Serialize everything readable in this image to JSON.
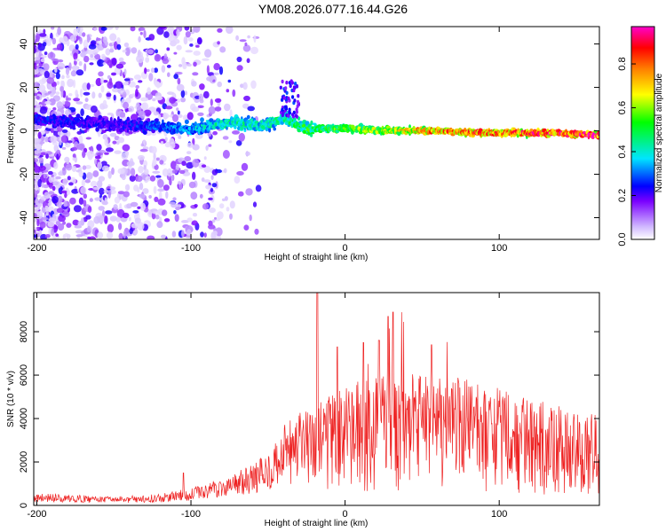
{
  "title": "YM08.2026.077.16.44.G26",
  "colors": {
    "snr_line": "#ee2222",
    "frame": "#000000",
    "background": "#ffffff"
  },
  "chart_data": [
    {
      "type": "heatmap",
      "title": "YM08.2026.077.16.44.G26",
      "xlabel": "Height of straight line (km)",
      "ylabel": "Frequency (Hz)",
      "xlim": [
        -202,
        165
      ],
      "ylim": [
        -50,
        48
      ],
      "xticks": [
        -200,
        -100,
        0,
        100
      ],
      "yticks": [
        -40,
        -20,
        0,
        20,
        40
      ],
      "colorbar": {
        "label": "Normalized spectral amplitude",
        "range": [
          0,
          0.97
        ],
        "ticks": [
          "0.0",
          "0.2",
          "0.4",
          "0.6",
          "0.8"
        ],
        "colormap": "rainbow"
      },
      "ridge": [
        {
          "x": -200,
          "y": 5,
          "amp": 0.25
        },
        {
          "x": -150,
          "y": 3,
          "amp": 0.22
        },
        {
          "x": -100,
          "y": 1,
          "amp": 0.35
        },
        {
          "x": -70,
          "y": 4,
          "amp": 0.45
        },
        {
          "x": -55,
          "y": 2,
          "amp": 0.4
        },
        {
          "x": -40,
          "y": 6,
          "amp": 0.45
        },
        {
          "x": -25,
          "y": 1,
          "amp": 0.5
        },
        {
          "x": 0,
          "y": 1,
          "amp": 0.55
        },
        {
          "x": 30,
          "y": 0,
          "amp": 0.65
        },
        {
          "x": 60,
          "y": 0,
          "amp": 0.8
        },
        {
          "x": 100,
          "y": -1,
          "amp": 0.8
        },
        {
          "x": 130,
          "y": -1,
          "amp": 0.85
        },
        {
          "x": 165,
          "y": -2,
          "amp": 0.9
        }
      ],
      "scatter_noise": {
        "x_range": [
          -202,
          -55
        ],
        "y_range": [
          -50,
          48
        ]
      }
    },
    {
      "type": "line",
      "xlabel": "Height of straight line (km)",
      "ylabel": "SNR (10 * v/v)",
      "xlim": [
        -202,
        165
      ],
      "ylim": [
        0,
        9800
      ],
      "xticks": [
        -200,
        -100,
        0,
        100
      ],
      "yticks": [
        0,
        2000,
        4000,
        6000,
        8000
      ],
      "envelope": [
        {
          "x": -202,
          "y": 450
        },
        {
          "x": -150,
          "y": 320
        },
        {
          "x": -120,
          "y": 420
        },
        {
          "x": -100,
          "y": 650
        },
        {
          "x": -80,
          "y": 1000
        },
        {
          "x": -60,
          "y": 1500
        },
        {
          "x": -45,
          "y": 2300
        },
        {
          "x": -35,
          "y": 2800
        },
        {
          "x": -20,
          "y": 3200
        },
        {
          "x": 0,
          "y": 3800
        },
        {
          "x": 30,
          "y": 4300
        },
        {
          "x": 60,
          "y": 4200
        },
        {
          "x": 90,
          "y": 3900
        },
        {
          "x": 120,
          "y": 3400
        },
        {
          "x": 150,
          "y": 3000
        },
        {
          "x": 165,
          "y": 2900
        }
      ],
      "peaks": [
        {
          "x": -18,
          "y": 9800
        },
        {
          "x": 31,
          "y": 8900
        },
        {
          "x": 28,
          "y": 8700
        },
        {
          "x": 12,
          "y": 7500
        },
        {
          "x": 56,
          "y": 7400
        },
        {
          "x": -5,
          "y": 7300
        },
        {
          "x": 22,
          "y": 7600
        },
        {
          "x": -105,
          "y": 1500
        }
      ]
    }
  ]
}
